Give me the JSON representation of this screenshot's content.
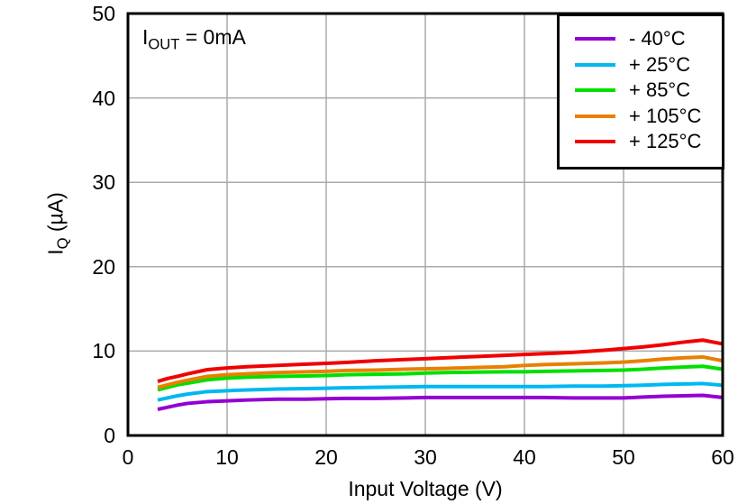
{
  "chart_data": {
    "type": "line",
    "title": "",
    "xlabel": "Input Voltage (V)",
    "ylabel": {
      "main": "I",
      "sub": "Q",
      "rest": " (µA)",
      "full": "IQ (µA)"
    },
    "annotation": {
      "main": "I",
      "sub": "OUT",
      "rest": " = 0mA",
      "full": "IOUT = 0mA"
    },
    "xlim": [
      0,
      60
    ],
    "ylim": [
      0,
      50
    ],
    "x_ticks": [
      0,
      10,
      20,
      30,
      40,
      50,
      60
    ],
    "y_ticks": [
      0,
      10,
      20,
      30,
      40,
      50
    ],
    "grid": true,
    "legend_position": "top-right",
    "x": [
      3,
      4,
      5,
      6,
      8,
      10,
      12,
      15,
      18,
      20,
      22,
      25,
      28,
      30,
      32,
      35,
      38,
      40,
      42,
      45,
      48,
      50,
      52,
      54,
      56,
      58,
      60
    ],
    "series": [
      {
        "name": "- 40°C",
        "color": "#9400D3",
        "values": [
          3.1,
          3.35,
          3.6,
          3.8,
          4.0,
          4.1,
          4.2,
          4.3,
          4.3,
          4.35,
          4.4,
          4.4,
          4.45,
          4.5,
          4.5,
          4.5,
          4.5,
          4.5,
          4.5,
          4.45,
          4.45,
          4.45,
          4.55,
          4.65,
          4.7,
          4.75,
          4.5
        ]
      },
      {
        "name": "+ 25°C",
        "color": "#00B8F0",
        "values": [
          4.2,
          4.45,
          4.7,
          4.9,
          5.2,
          5.3,
          5.4,
          5.5,
          5.55,
          5.6,
          5.65,
          5.7,
          5.75,
          5.8,
          5.8,
          5.8,
          5.8,
          5.8,
          5.8,
          5.85,
          5.85,
          5.9,
          5.95,
          6.05,
          6.1,
          6.15,
          5.95
        ]
      },
      {
        "name": "+ 85°C",
        "color": "#00E000",
        "values": [
          5.4,
          5.7,
          6.0,
          6.2,
          6.6,
          6.8,
          6.9,
          7.0,
          7.05,
          7.1,
          7.2,
          7.25,
          7.3,
          7.4,
          7.45,
          7.5,
          7.55,
          7.55,
          7.6,
          7.65,
          7.7,
          7.75,
          7.85,
          8.0,
          8.1,
          8.2,
          7.85
        ]
      },
      {
        "name": "+ 105°C",
        "color": "#E88000",
        "values": [
          5.7,
          6.0,
          6.3,
          6.55,
          7.0,
          7.2,
          7.3,
          7.45,
          7.55,
          7.6,
          7.7,
          7.75,
          7.85,
          7.9,
          7.95,
          8.05,
          8.15,
          8.3,
          8.4,
          8.5,
          8.6,
          8.7,
          8.85,
          9.05,
          9.2,
          9.3,
          8.85
        ]
      },
      {
        "name": "+ 125°C",
        "color": "#F00000",
        "values": [
          6.4,
          6.75,
          7.0,
          7.3,
          7.8,
          8.0,
          8.15,
          8.3,
          8.45,
          8.55,
          8.65,
          8.85,
          9.0,
          9.1,
          9.2,
          9.35,
          9.5,
          9.6,
          9.7,
          9.85,
          10.1,
          10.3,
          10.5,
          10.75,
          11.05,
          11.3,
          10.85
        ]
      }
    ]
  },
  "colors": {
    "background": "#FFFFFF",
    "axis": "#000000",
    "grid": "#AAAAAA",
    "text": "#000000"
  }
}
